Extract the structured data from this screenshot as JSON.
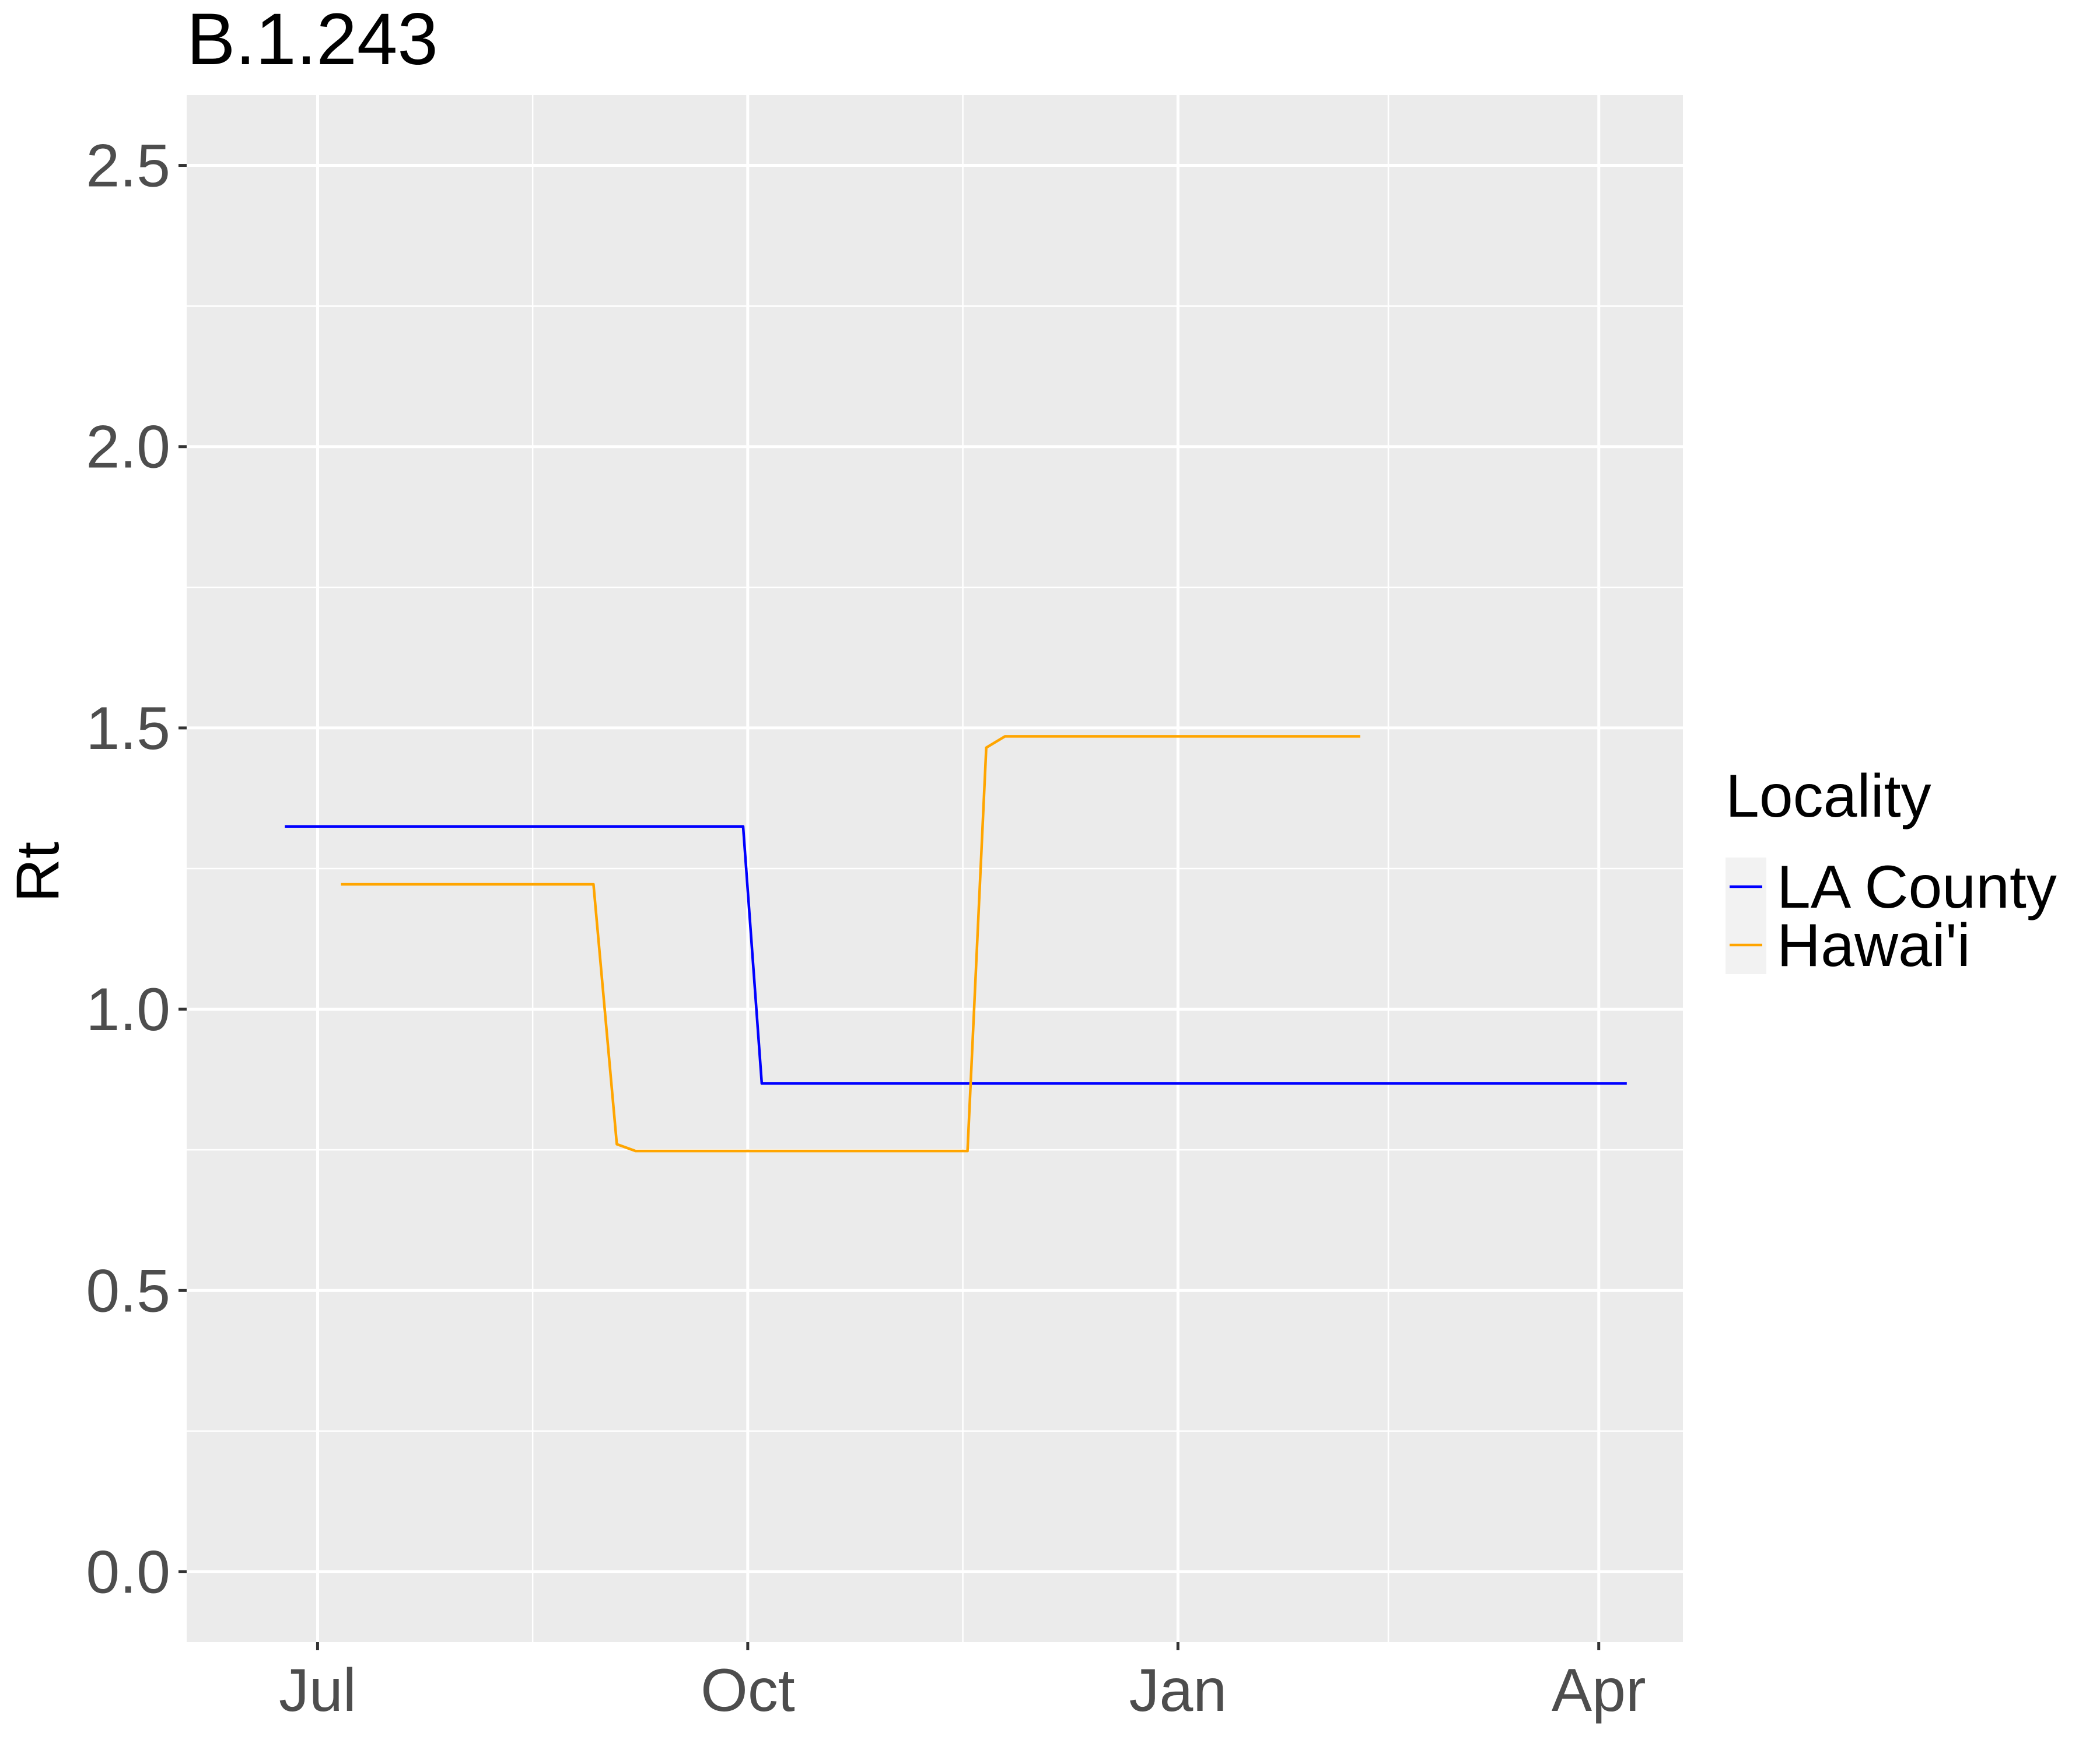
{
  "chart_data": {
    "type": "line",
    "title": "B.1.243",
    "xlabel": "",
    "ylabel": "Rt",
    "x_axis": {
      "type": "date",
      "range": [
        "2020-06-03",
        "2021-04-19"
      ],
      "ticks": [
        {
          "date": "2020-07-01",
          "label": "Jul"
        },
        {
          "date": "2020-10-01",
          "label": "Oct"
        },
        {
          "date": "2021-01-01",
          "label": "Jan"
        },
        {
          "date": "2021-04-01",
          "label": "Apr"
        }
      ],
      "minor_ticks": [
        "2020-08-16",
        "2020-11-16",
        "2021-02-15"
      ]
    },
    "y_axis": {
      "range": [
        -0.125,
        2.625
      ],
      "ticks": [
        {
          "value": 0.0,
          "label": "0.0"
        },
        {
          "value": 0.5,
          "label": "0.5"
        },
        {
          "value": 1.0,
          "label": "1.0"
        },
        {
          "value": 1.5,
          "label": "1.5"
        },
        {
          "value": 2.0,
          "label": "2.0"
        },
        {
          "value": 2.5,
          "label": "2.5"
        }
      ],
      "minor_ticks": [
        0.25,
        0.75,
        1.25,
        1.75,
        2.25
      ]
    },
    "grid": true,
    "legend": {
      "title": "Locality",
      "placement": "right"
    },
    "series": [
      {
        "name": "LA County",
        "color": "#0000FF",
        "points": [
          {
            "x": "2020-06-24",
            "y": 1.325
          },
          {
            "x": "2020-09-30",
            "y": 1.325
          },
          {
            "x": "2020-10-04",
            "y": 0.868
          },
          {
            "x": "2021-04-07",
            "y": 0.868
          }
        ]
      },
      {
        "name": "Hawai'i",
        "color": "#FFA500",
        "points": [
          {
            "x": "2020-07-06",
            "y": 1.222
          },
          {
            "x": "2020-08-29",
            "y": 1.222
          },
          {
            "x": "2020-09-03",
            "y": 0.76
          },
          {
            "x": "2020-09-07",
            "y": 0.748
          },
          {
            "x": "2020-11-17",
            "y": 0.748
          },
          {
            "x": "2020-11-21",
            "y": 1.465
          },
          {
            "x": "2020-11-25",
            "y": 1.485
          },
          {
            "x": "2021-02-09",
            "y": 1.485
          }
        ]
      }
    ]
  }
}
